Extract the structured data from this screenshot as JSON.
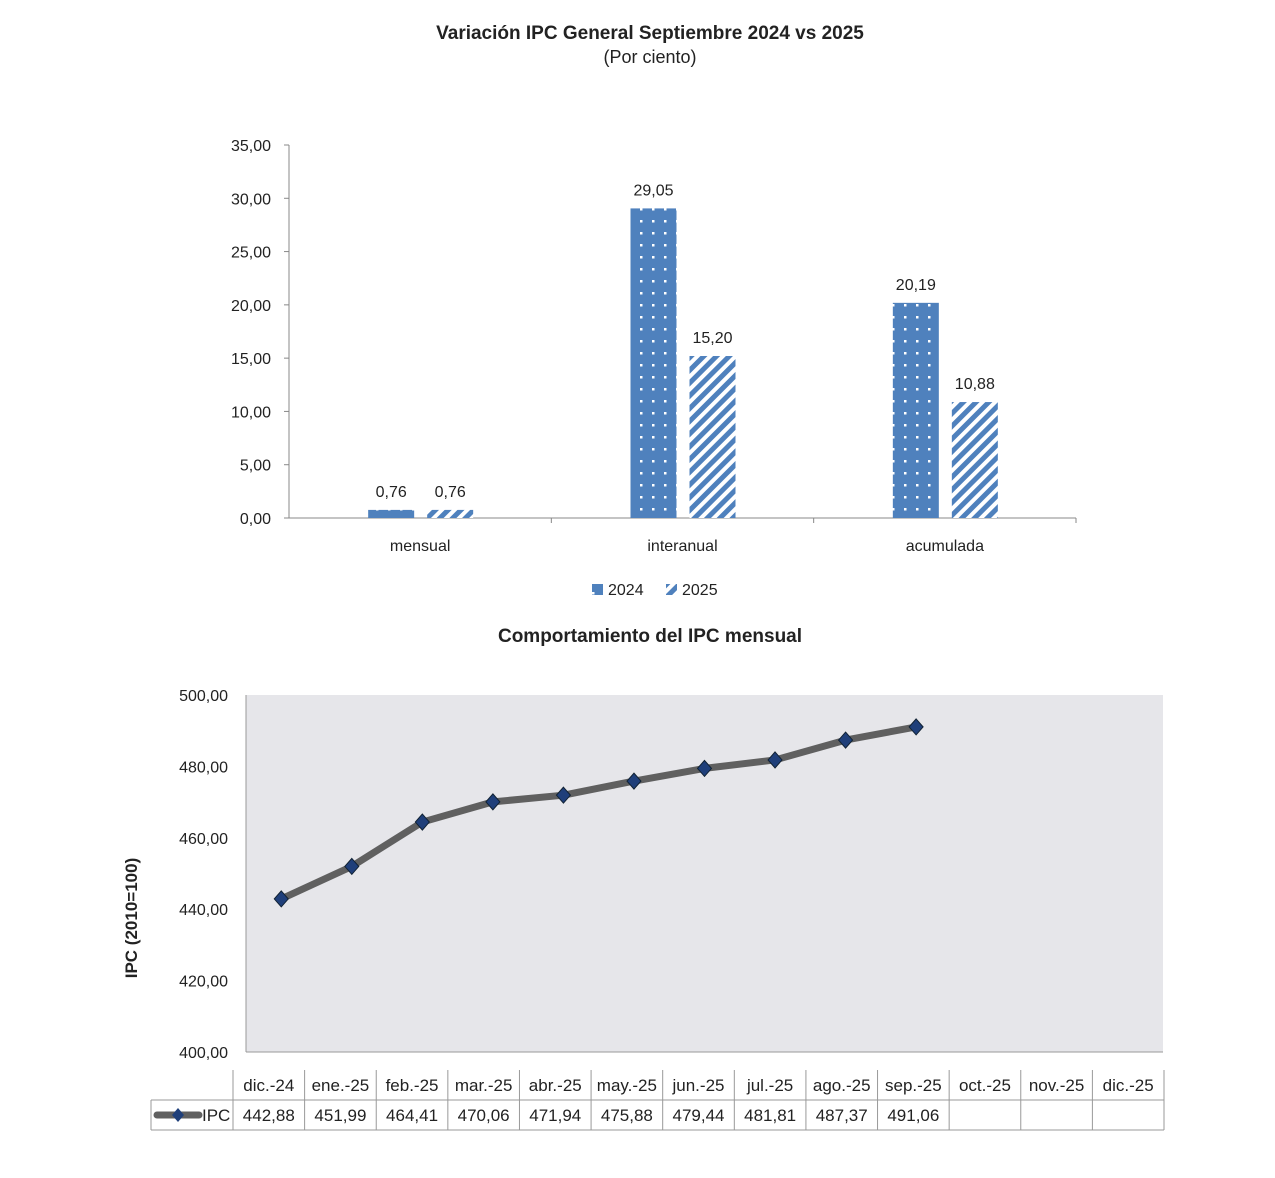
{
  "chart_data": [
    {
      "type": "bar",
      "title": "Variación IPC General Septiembre 2024 vs 2025",
      "subtitle": "(Por ciento)",
      "categories": [
        "mensual",
        "interanual",
        "acumulada"
      ],
      "series": [
        {
          "name": "2024",
          "values": [
            0.76,
            29.05,
            20.19
          ],
          "labels": [
            "0,76",
            "29,05",
            "20,19"
          ],
          "color": "#4f81bd",
          "pattern": "dots"
        },
        {
          "name": "2025",
          "values": [
            0.76,
            15.2,
            10.88
          ],
          "labels": [
            "0,76",
            "15,20",
            "10,88"
          ],
          "color": "#4f81bd",
          "pattern": "diagonal-stripes"
        }
      ],
      "ylim": [
        0,
        35
      ],
      "yticks": [
        0,
        5,
        10,
        15,
        20,
        25,
        30,
        35
      ],
      "ytick_labels": [
        "0,00",
        "5,00",
        "10,00",
        "15,00",
        "20,00",
        "25,00",
        "30,00",
        "35,00"
      ],
      "xlabel": "",
      "ylabel": "",
      "legend": "bottom",
      "grid": false
    },
    {
      "type": "line",
      "title": "Comportamiento del IPC mensual",
      "ylabel": "IPC (2010=100)",
      "categories": [
        "dic.-24",
        "ene.-25",
        "feb.-25",
        "mar.-25",
        "abr.-25",
        "may.-25",
        "jun.-25",
        "jul.-25",
        "ago.-25",
        "sep.-25",
        "oct.-25",
        "nov.-25",
        "dic.-25"
      ],
      "series": [
        {
          "name": "IPC",
          "values": [
            442.88,
            451.99,
            464.41,
            470.06,
            471.94,
            475.88,
            479.44,
            481.81,
            487.37,
            491.06,
            null,
            null,
            null
          ],
          "labels": [
            "442,88",
            "451,99",
            "464,41",
            "470,06",
            "471,94",
            "475,88",
            "479,44",
            "481,81",
            "487,37",
            "491,06",
            "",
            "",
            ""
          ],
          "line_color": "#606060",
          "marker_color": "#1f3f7a"
        }
      ],
      "ylim": [
        400,
        500
      ],
      "yticks": [
        400,
        420,
        440,
        460,
        480,
        500
      ],
      "ytick_labels": [
        "400,00",
        "420,00",
        "440,00",
        "460,00",
        "480,00",
        "500,00"
      ],
      "legend": "data-table",
      "plot_background": "#e6e6ea"
    }
  ]
}
